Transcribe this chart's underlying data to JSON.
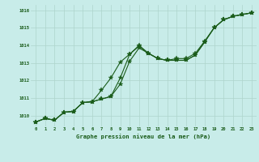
{
  "title": "Graphe pression niveau de la mer (hPa)",
  "background_color": "#c8ece9",
  "grid_color": "#aed4cc",
  "line_color": "#1a5c1a",
  "xlim": [
    -0.5,
    23.5
  ],
  "ylim": [
    1009.4,
    1016.3
  ],
  "yticks": [
    1010,
    1011,
    1012,
    1013,
    1014,
    1015,
    1016
  ],
  "xticks": [
    0,
    1,
    2,
    3,
    4,
    5,
    6,
    7,
    8,
    9,
    10,
    11,
    12,
    13,
    14,
    15,
    16,
    17,
    18,
    19,
    20,
    21,
    22,
    23
  ],
  "series1_x": [
    0,
    1,
    2,
    3,
    4,
    5,
    6,
    7,
    8,
    9,
    10,
    11,
    12,
    13,
    14,
    15,
    16,
    17,
    18,
    19,
    20,
    21,
    22,
    23
  ],
  "series1_y": [
    1009.65,
    1009.85,
    1009.75,
    1010.2,
    1010.25,
    1010.75,
    1010.8,
    1010.95,
    1011.1,
    1011.8,
    1013.1,
    1013.85,
    1013.55,
    1013.25,
    1013.15,
    1013.15,
    1013.15,
    1013.45,
    1014.2,
    1015.0,
    1015.45,
    1015.65,
    1015.75,
    1015.85
  ],
  "series2_x": [
    0,
    1,
    2,
    3,
    4,
    5,
    6,
    7,
    8,
    9,
    10,
    11,
    12,
    13,
    14,
    15,
    16,
    17,
    18,
    19,
    20,
    21,
    22,
    23
  ],
  "series2_y": [
    1009.65,
    1009.85,
    1009.75,
    1010.2,
    1010.25,
    1010.75,
    1010.8,
    1011.45,
    1012.15,
    1013.05,
    1013.5,
    1013.95,
    1013.55,
    1013.25,
    1013.15,
    1013.25,
    1013.25,
    1013.55,
    1014.25,
    1015.0,
    1015.45,
    1015.65,
    1015.75,
    1015.85
  ],
  "series3_x": [
    0,
    1,
    2,
    3,
    4,
    5,
    6,
    7,
    8,
    9,
    10,
    11,
    12,
    13,
    14,
    15,
    16,
    17,
    18,
    19,
    20,
    21,
    22,
    23
  ],
  "series3_y": [
    1009.65,
    1009.85,
    1009.75,
    1010.2,
    1010.25,
    1010.75,
    1010.8,
    1010.95,
    1011.1,
    1012.15,
    1013.5,
    1014.0,
    1013.55,
    1013.25,
    1013.15,
    1013.15,
    1013.15,
    1013.45,
    1014.2,
    1015.0,
    1015.45,
    1015.65,
    1015.75,
    1015.85
  ]
}
